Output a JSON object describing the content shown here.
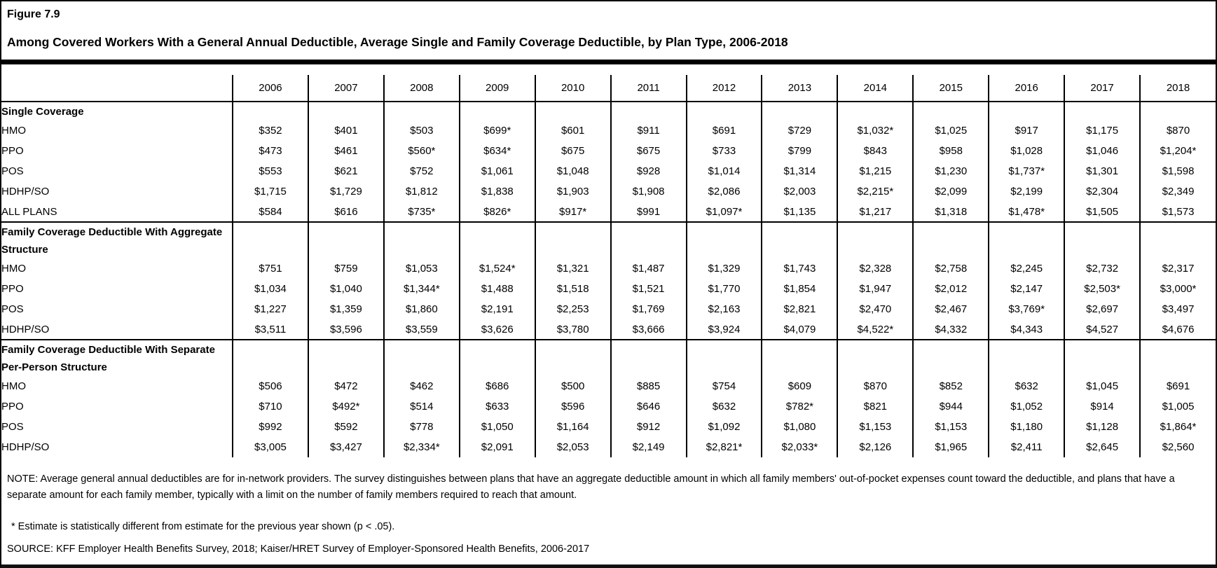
{
  "figure": {
    "label": "Figure 7.9",
    "title": "Among Covered Workers With a General Annual Deductible, Average Single and Family Coverage Deductible, by Plan Type, 2006-2018"
  },
  "chart_data": {
    "type": "table",
    "title": "Among Covered Workers With a General Annual Deductible, Average Single and Family Coverage Deductible, by Plan Type, 2006-2018",
    "columns": [
      "2006",
      "2007",
      "2008",
      "2009",
      "2010",
      "2011",
      "2012",
      "2013",
      "2014",
      "2015",
      "2016",
      "2017",
      "2018"
    ],
    "sections": [
      {
        "header": "Single Coverage",
        "header_lines": 1,
        "rows": [
          {
            "label": "HMO",
            "values": [
              "$352",
              "$401",
              "$503",
              "$699*",
              "$601",
              "$911",
              "$691",
              "$729",
              "$1,032*",
              "$1,025",
              "$917",
              "$1,175",
              "$870"
            ]
          },
          {
            "label": "PPO",
            "values": [
              "$473",
              "$461",
              "$560*",
              "$634*",
              "$675",
              "$675",
              "$733",
              "$799",
              "$843",
              "$958",
              "$1,028",
              "$1,046",
              "$1,204*"
            ]
          },
          {
            "label": "POS",
            "values": [
              "$553",
              "$621",
              "$752",
              "$1,061",
              "$1,048",
              "$928",
              "$1,014",
              "$1,314",
              "$1,215",
              "$1,230",
              "$1,737*",
              "$1,301",
              "$1,598"
            ]
          },
          {
            "label": "HDHP/SO",
            "values": [
              "$1,715",
              "$1,729",
              "$1,812",
              "$1,838",
              "$1,903",
              "$1,908",
              "$2,086",
              "$2,003",
              "$2,215*",
              "$2,099",
              "$2,199",
              "$2,304",
              "$2,349"
            ]
          },
          {
            "label": "ALL PLANS",
            "values": [
              "$584",
              "$616",
              "$735*",
              "$826*",
              "$917*",
              "$991",
              "$1,097*",
              "$1,135",
              "$1,217",
              "$1,318",
              "$1,478*",
              "$1,505",
              "$1,573"
            ]
          }
        ]
      },
      {
        "header": "Family Coverage Deductible With Aggregate Structure",
        "header_lines": 2,
        "rows": [
          {
            "label": "HMO",
            "values": [
              "$751",
              "$759",
              "$1,053",
              "$1,524*",
              "$1,321",
              "$1,487",
              "$1,329",
              "$1,743",
              "$2,328",
              "$2,758",
              "$2,245",
              "$2,732",
              "$2,317"
            ]
          },
          {
            "label": "PPO",
            "values": [
              "$1,034",
              "$1,040",
              "$1,344*",
              "$1,488",
              "$1,518",
              "$1,521",
              "$1,770",
              "$1,854",
              "$1,947",
              "$2,012",
              "$2,147",
              "$2,503*",
              "$3,000*"
            ]
          },
          {
            "label": "POS",
            "values": [
              "$1,227",
              "$1,359",
              "$1,860",
              "$2,191",
              "$2,253",
              "$1,769",
              "$2,163",
              "$2,821",
              "$2,470",
              "$2,467",
              "$3,769*",
              "$2,697",
              "$3,497"
            ]
          },
          {
            "label": "HDHP/SO",
            "values": [
              "$3,511",
              "$3,596",
              "$3,559",
              "$3,626",
              "$3,780",
              "$3,666",
              "$3,924",
              "$4,079",
              "$4,522*",
              "$4,332",
              "$4,343",
              "$4,527",
              "$4,676"
            ]
          }
        ]
      },
      {
        "header": "Family Coverage Deductible With Separate Per-Person Structure",
        "header_lines": 2,
        "rows": [
          {
            "label": "HMO",
            "values": [
              "$506",
              "$472",
              "$462",
              "$686",
              "$500",
              "$885",
              "$754",
              "$609",
              "$870",
              "$852",
              "$632",
              "$1,045",
              "$691"
            ]
          },
          {
            "label": "PPO",
            "values": [
              "$710",
              "$492*",
              "$514",
              "$633",
              "$596",
              "$646",
              "$632",
              "$782*",
              "$821",
              "$944",
              "$1,052",
              "$914",
              "$1,005"
            ]
          },
          {
            "label": "POS",
            "values": [
              "$992",
              "$592",
              "$778",
              "$1,050",
              "$1,164",
              "$912",
              "$1,092",
              "$1,080",
              "$1,153",
              "$1,153",
              "$1,180",
              "$1,128",
              "$1,864*"
            ]
          },
          {
            "label": "HDHP/SO",
            "values": [
              "$3,005",
              "$3,427",
              "$2,334*",
              "$2,091",
              "$2,053",
              "$2,149",
              "$2,821*",
              "$2,033*",
              "$2,126",
              "$1,965",
              "$2,411",
              "$2,645",
              "$2,560"
            ]
          }
        ]
      }
    ]
  },
  "notes": {
    "note": "NOTE: Average general annual deductibles are for in-network providers. The survey distinguishes between plans that have an aggregate deductible amount in which all family members' out-of-pocket expenses count toward the deductible, and plans that have a separate amount for each family member, typically with a limit on the number of family members required to reach that amount.",
    "footnote": "* Estimate is statistically different from estimate for the previous year shown (p < .05).",
    "source": "SOURCE: KFF Employer Health Benefits Survey, 2018; Kaiser/HRET Survey of Employer-Sponsored Health Benefits, 2006-2017"
  },
  "colors": {
    "background": "#ffffff",
    "text": "#000000",
    "border": "#000000"
  }
}
